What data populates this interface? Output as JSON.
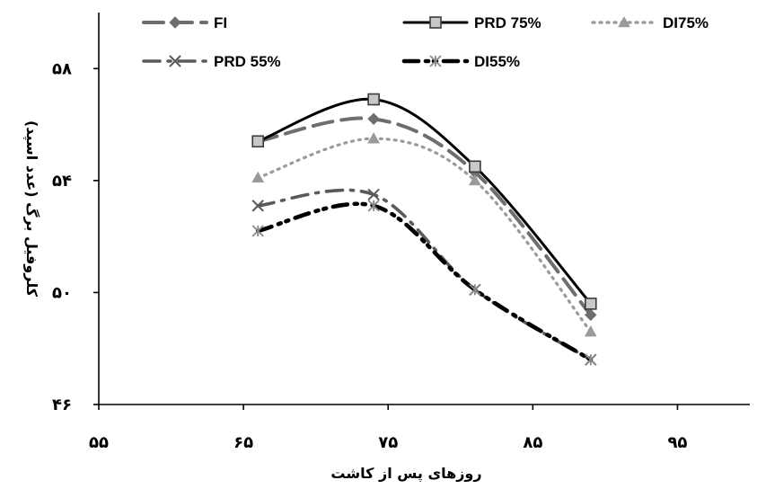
{
  "chart_data": {
    "type": "line",
    "xlabel": "روزهای پس از کاشت",
    "ylabel": "کلروفیل برگ (عدد اسپد)",
    "xlim": [
      55,
      100
    ],
    "ylim": [
      46,
      60
    ],
    "x_ticks": [
      55,
      65,
      75,
      85,
      95
    ],
    "y_ticks": [
      46,
      50,
      54,
      58
    ],
    "x_tick_labels": [
      "۵۵",
      "۶۵",
      "۷۵",
      "۸۵",
      "۹۵"
    ],
    "y_tick_labels": [
      "۴۶",
      "۵۰",
      "۵۴",
      "۵۸"
    ],
    "legend_position": "top",
    "series": [
      {
        "name": "FI",
        "x": [
          66,
          74,
          81,
          89
        ],
        "y": [
          55.4,
          56.2,
          54.3,
          49.2
        ],
        "color": "#6e6e6e",
        "marker": "diamond",
        "dash": "long-dash"
      },
      {
        "name": "PRD 75%",
        "x": [
          66,
          74,
          81,
          89
        ],
        "y": [
          55.4,
          56.9,
          54.5,
          49.6
        ],
        "color": "#000000",
        "marker": "square",
        "dash": "solid"
      },
      {
        "name": "DI75%",
        "x": [
          66,
          74,
          81,
          89
        ],
        "y": [
          54.1,
          55.5,
          54.0,
          48.6
        ],
        "color": "#9a9a9a",
        "marker": "triangle",
        "dash": "dotted"
      },
      {
        "name": "PRD 55%",
        "x": [
          66,
          74,
          81,
          89
        ],
        "y": [
          53.1,
          53.5,
          50.1,
          47.6
        ],
        "color": "#5a5a5a",
        "marker": "x",
        "dash": "dash-dot"
      },
      {
        "name": "DI55%",
        "x": [
          66,
          74,
          81,
          89
        ],
        "y": [
          52.2,
          53.1,
          50.1,
          47.6
        ],
        "color": "#000000",
        "marker": "star",
        "dash": "dash-dot-dot"
      }
    ]
  }
}
